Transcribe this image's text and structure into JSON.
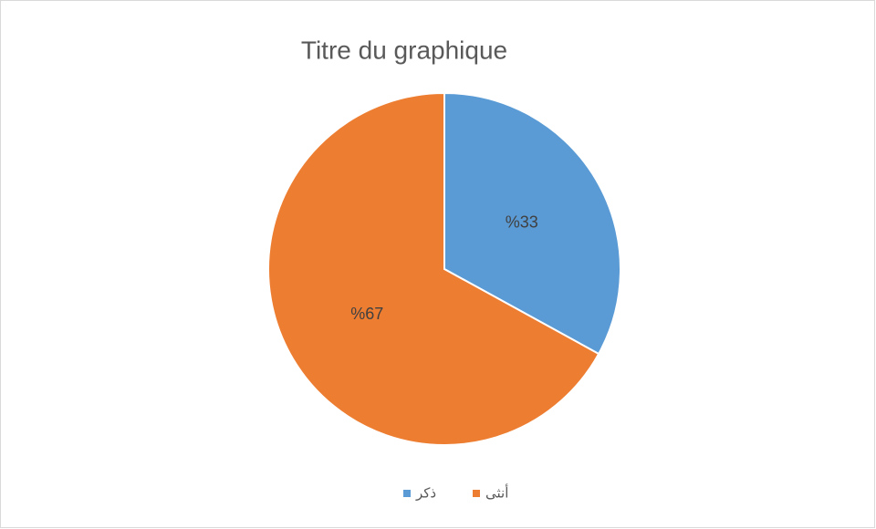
{
  "chart_data": {
    "type": "pie",
    "title": "Titre du graphique",
    "categories": [
      "ذكر",
      "أنثى"
    ],
    "values": [
      33,
      67
    ],
    "value_labels": [
      "%33",
      "%67"
    ],
    "colors": [
      "#5b9bd5",
      "#ed7d31"
    ],
    "legend": "bottom"
  }
}
